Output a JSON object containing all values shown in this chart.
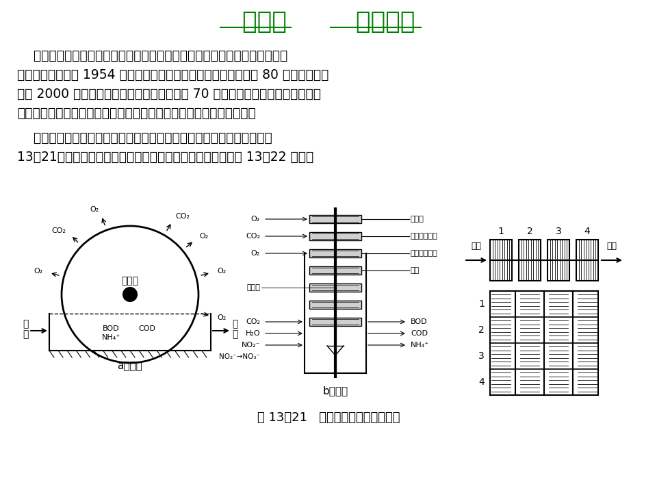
{
  "title": "第五节        生物转盘",
  "title_color": "#008000",
  "title_fontsize": 26,
  "bg_color": "#ffffff",
  "para1": "    生物转盘（又名转盘式生物滤池）是一种生物膜法处理设备。由于它具有很\n多优点，因此，自 1954 年德国建立第一座生物转盘污水厂后，到 80 年代，欧洲已\n建成 2000 多座生物转盘，发展迅速。我国于 70 年代开始进行研究，已在印染、\n造纸、皮革和石油化工等行业的工业废水处理中得到应用，效果较好。",
  "para2": "    生物转盘去除废水中有机污染物的机理，与生物滤池基本相同（参见图\n13－21），但构造形式与生物滤池很不相同。其基本流程如图 13－22 所示。",
  "caption": "图 13－21   生物转盘工作情况示意图",
  "text_fontsize": 13.5,
  "caption_fontsize": 13
}
